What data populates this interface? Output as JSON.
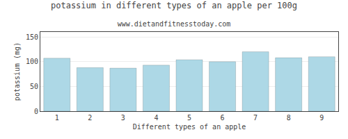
{
  "chart_data": {
    "type": "bar",
    "title": "potassium in different types of an apple per 100g",
    "subtitle": "www.dietandfitnesstoday.com",
    "xlabel": "Different types of an apple",
    "ylabel": "potassium (mg)",
    "categories": [
      1,
      2,
      3,
      4,
      5,
      6,
      7,
      8,
      9
    ],
    "values": [
      107,
      88,
      87,
      93,
      104,
      100,
      120,
      108,
      110
    ],
    "color": "#add8e6",
    "ylim": [
      0,
      160
    ],
    "yticks": [
      0,
      50,
      100,
      150
    ],
    "grid": true
  }
}
